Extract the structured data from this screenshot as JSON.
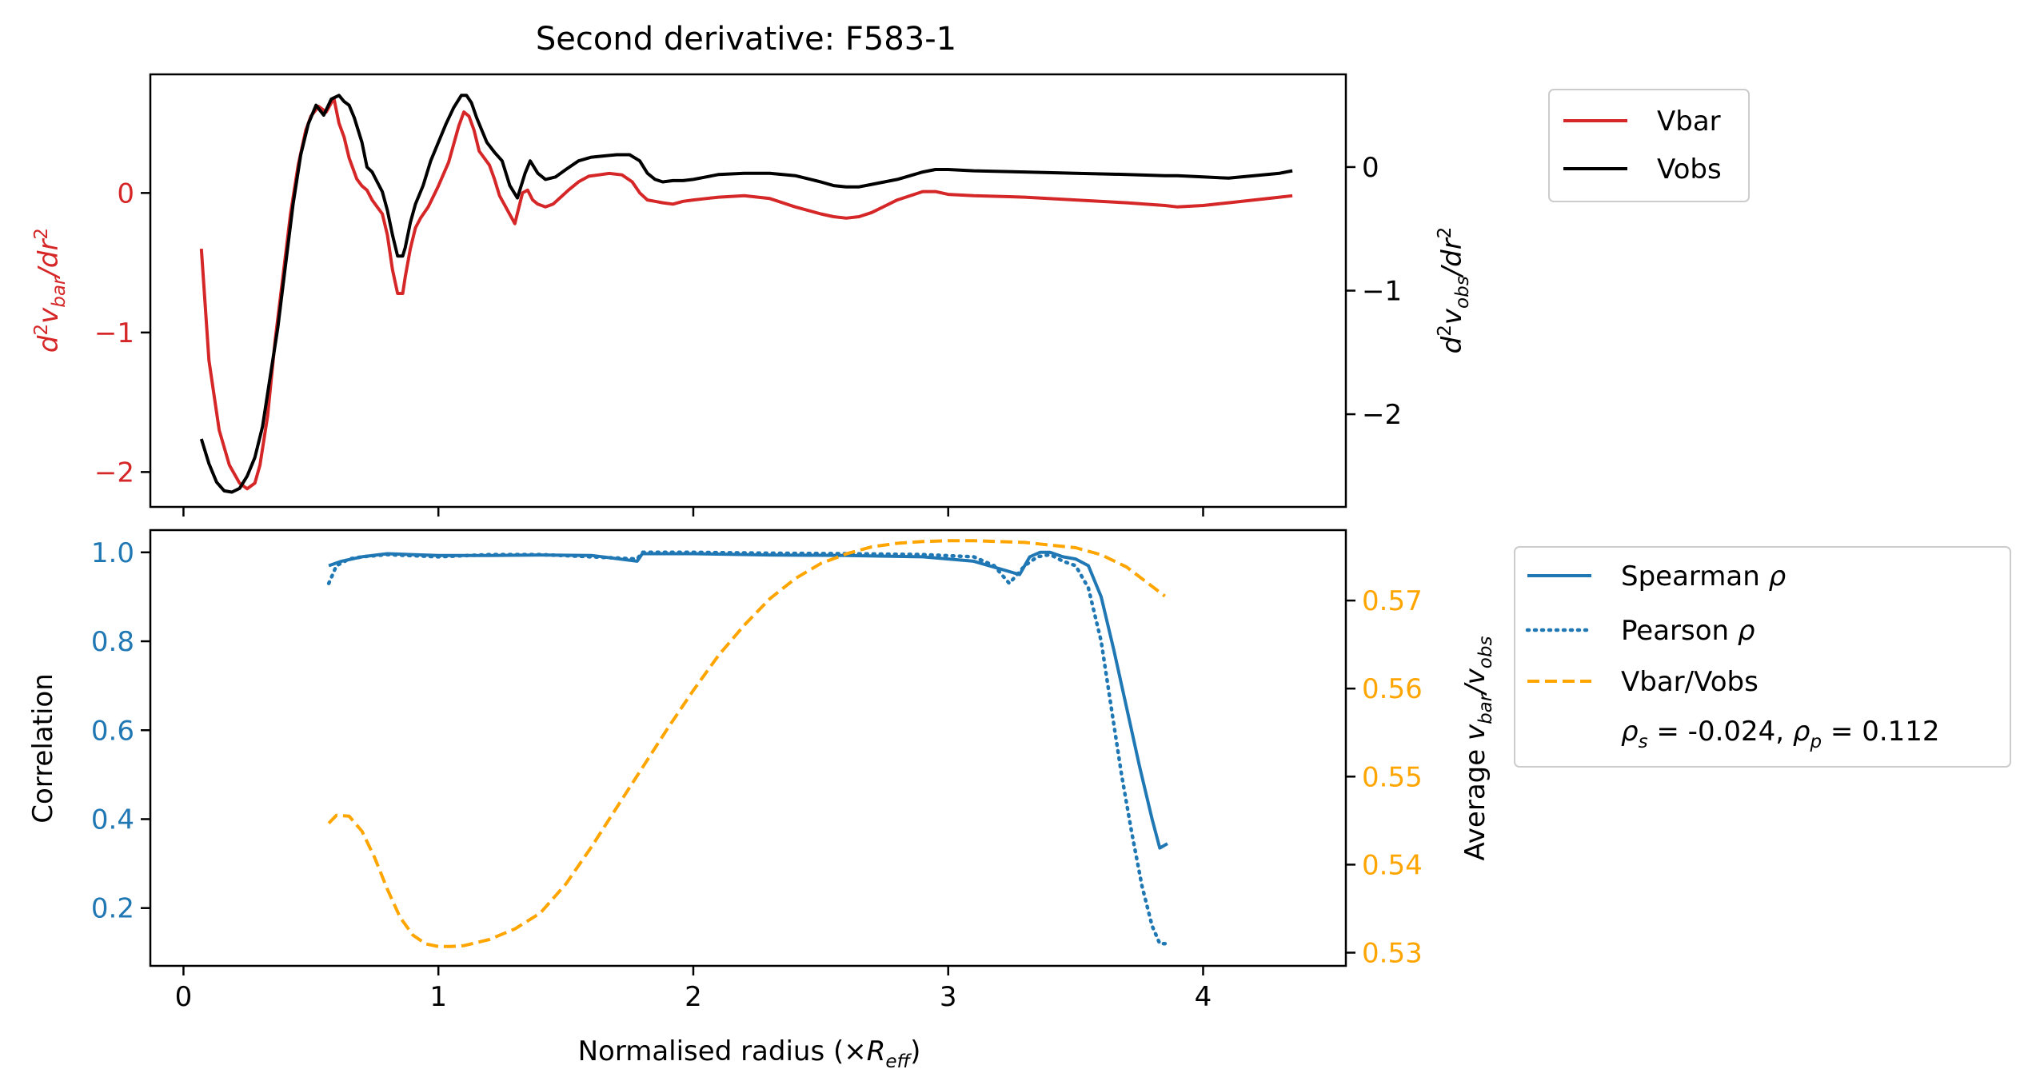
{
  "figure": {
    "title": "Second derivative: F583-1"
  },
  "chart_data": [
    {
      "type": "line",
      "panel": "top",
      "title": "Second derivative: F583-1",
      "xlim": [
        -0.13,
        4.56
      ],
      "x_ticks": [
        0,
        1,
        2,
        3,
        4
      ],
      "ylabel_left": "d²v_bar/dr²",
      "ylabel_right": "d²v_obs/dr²",
      "ylim_left": [
        -2.25,
        0.85
      ],
      "ylim_right": [
        -2.75,
        0.75
      ],
      "yticks_left": [
        {
          "value": 0,
          "label": "0"
        },
        {
          "value": -1,
          "label": "−1"
        },
        {
          "value": -2,
          "label": "−2"
        }
      ],
      "yticks_right": [
        {
          "value": 0,
          "label": "0"
        },
        {
          "value": -1,
          "label": "−1"
        },
        {
          "value": -2,
          "label": "−2"
        }
      ],
      "legend": {
        "placement": "outside-top-right",
        "entries": [
          "Vbar",
          "Vobs"
        ]
      },
      "series": [
        {
          "name": "Vbar",
          "axis": "left",
          "color": "#d62728",
          "style": "solid",
          "x": [
            0.07,
            0.1,
            0.14,
            0.18,
            0.22,
            0.25,
            0.28,
            0.3,
            0.33,
            0.36,
            0.39,
            0.42,
            0.45,
            0.48,
            0.5,
            0.53,
            0.56,
            0.59,
            0.61,
            0.63,
            0.65,
            0.68,
            0.7,
            0.72,
            0.74,
            0.76,
            0.78,
            0.8,
            0.82,
            0.84,
            0.86,
            0.87,
            0.89,
            0.91,
            0.93,
            0.96,
            1.0,
            1.04,
            1.08,
            1.1,
            1.12,
            1.14,
            1.16,
            1.18,
            1.2,
            1.22,
            1.24,
            1.27,
            1.3,
            1.33,
            1.35,
            1.37,
            1.39,
            1.42,
            1.45,
            1.48,
            1.51,
            1.55,
            1.59,
            1.63,
            1.67,
            1.72,
            1.76,
            1.79,
            1.82,
            1.85,
            1.88,
            1.92,
            1.96,
            2.0,
            2.05,
            2.1,
            2.2,
            2.3,
            2.4,
            2.5,
            2.55,
            2.6,
            2.65,
            2.7,
            2.8,
            2.9,
            2.95,
            3.0,
            3.1,
            3.3,
            3.5,
            3.7,
            3.85,
            3.9,
            4.0,
            4.1,
            4.2,
            4.3,
            4.35
          ],
          "values": [
            -0.4,
            -1.2,
            -1.7,
            -1.95,
            -2.08,
            -2.12,
            -2.08,
            -1.95,
            -1.6,
            -1.05,
            -0.6,
            -0.15,
            0.2,
            0.45,
            0.55,
            0.62,
            0.58,
            0.68,
            0.5,
            0.4,
            0.25,
            0.1,
            0.05,
            0.02,
            -0.05,
            -0.1,
            -0.15,
            -0.3,
            -0.55,
            -0.72,
            -0.72,
            -0.6,
            -0.4,
            -0.25,
            -0.18,
            -0.1,
            0.05,
            0.22,
            0.48,
            0.58,
            0.55,
            0.45,
            0.3,
            0.25,
            0.2,
            0.1,
            -0.02,
            -0.12,
            -0.22,
            0.0,
            0.02,
            -0.05,
            -0.08,
            -0.1,
            -0.08,
            -0.03,
            0.02,
            0.08,
            0.12,
            0.13,
            0.14,
            0.13,
            0.08,
            0.0,
            -0.05,
            -0.06,
            -0.07,
            -0.08,
            -0.06,
            -0.05,
            -0.04,
            -0.03,
            -0.02,
            -0.04,
            -0.1,
            -0.15,
            -0.17,
            -0.18,
            -0.17,
            -0.14,
            -0.05,
            0.01,
            0.01,
            -0.01,
            -0.02,
            -0.03,
            -0.05,
            -0.07,
            -0.09,
            -0.1,
            -0.09,
            -0.07,
            -0.05,
            -0.03,
            -0.02
          ]
        },
        {
          "name": "Vobs",
          "axis": "right",
          "color": "#000000",
          "style": "solid",
          "x": [
            0.07,
            0.1,
            0.13,
            0.16,
            0.19,
            0.22,
            0.25,
            0.28,
            0.31,
            0.34,
            0.37,
            0.4,
            0.43,
            0.46,
            0.49,
            0.52,
            0.55,
            0.58,
            0.61,
            0.63,
            0.65,
            0.67,
            0.7,
            0.72,
            0.74,
            0.76,
            0.78,
            0.8,
            0.82,
            0.84,
            0.86,
            0.87,
            0.89,
            0.91,
            0.94,
            0.97,
            1.0,
            1.03,
            1.06,
            1.09,
            1.11,
            1.13,
            1.15,
            1.17,
            1.19,
            1.22,
            1.25,
            1.28,
            1.31,
            1.34,
            1.36,
            1.39,
            1.42,
            1.46,
            1.5,
            1.55,
            1.6,
            1.65,
            1.7,
            1.75,
            1.79,
            1.82,
            1.85,
            1.88,
            1.92,
            1.96,
            2.0,
            2.05,
            2.1,
            2.2,
            2.3,
            2.4,
            2.5,
            2.55,
            2.6,
            2.65,
            2.7,
            2.8,
            2.9,
            2.95,
            3.0,
            3.1,
            3.3,
            3.5,
            3.7,
            3.85,
            3.9,
            4.0,
            4.1,
            4.2,
            4.3,
            4.35
          ],
          "values": [
            -2.2,
            -2.4,
            -2.55,
            -2.62,
            -2.63,
            -2.6,
            -2.5,
            -2.35,
            -2.1,
            -1.7,
            -1.3,
            -0.8,
            -0.3,
            0.1,
            0.35,
            0.5,
            0.42,
            0.55,
            0.58,
            0.53,
            0.5,
            0.4,
            0.2,
            0.0,
            -0.04,
            -0.12,
            -0.2,
            -0.35,
            -0.55,
            -0.72,
            -0.72,
            -0.65,
            -0.45,
            -0.3,
            -0.15,
            0.05,
            0.2,
            0.35,
            0.48,
            0.58,
            0.58,
            0.52,
            0.4,
            0.3,
            0.2,
            0.12,
            0.05,
            -0.15,
            -0.25,
            -0.05,
            0.05,
            -0.05,
            -0.1,
            -0.08,
            -0.02,
            0.05,
            0.08,
            0.09,
            0.1,
            0.1,
            0.05,
            -0.05,
            -0.1,
            -0.12,
            -0.11,
            -0.11,
            -0.1,
            -0.08,
            -0.06,
            -0.05,
            -0.05,
            -0.07,
            -0.12,
            -0.15,
            -0.16,
            -0.16,
            -0.14,
            -0.1,
            -0.04,
            -0.02,
            -0.02,
            -0.03,
            -0.04,
            -0.05,
            -0.06,
            -0.07,
            -0.07,
            -0.08,
            -0.09,
            -0.07,
            -0.05,
            -0.03
          ]
        }
      ]
    },
    {
      "type": "line",
      "panel": "bottom",
      "xlabel": "Normalised radius (×R_eff)",
      "xlim": [
        -0.13,
        4.56
      ],
      "x_ticks": [
        0,
        1,
        2,
        3,
        4
      ],
      "ylabel_left": "Correlation",
      "ylabel_right": "Average v_bar/v_obs",
      "ylim_left": [
        0.07,
        1.05
      ],
      "ylim_right": [
        0.5285,
        0.578
      ],
      "yticks_left": [
        {
          "value": 0.2,
          "label": "0.2"
        },
        {
          "value": 0.4,
          "label": "0.4"
        },
        {
          "value": 0.6,
          "label": "0.6"
        },
        {
          "value": 0.8,
          "label": "0.8"
        },
        {
          "value": 1.0,
          "label": "1.0"
        }
      ],
      "yticks_right": [
        {
          "value": 0.53,
          "label": "0.53"
        },
        {
          "value": 0.54,
          "label": "0.54"
        },
        {
          "value": 0.55,
          "label": "0.55"
        },
        {
          "value": 0.56,
          "label": "0.56"
        },
        {
          "value": 0.57,
          "label": "0.57"
        }
      ],
      "legend": {
        "placement": "outside-bottom-right",
        "entries": [
          "Spearman ρ",
          "Pearson ρ",
          "Vbar/Vobs"
        ],
        "note": "ρ_s = -0.024, ρ_p = 0.112"
      },
      "series": [
        {
          "name": "Spearman ρ",
          "axis": "left",
          "color": "#1f77b4",
          "style": "solid",
          "x": [
            0.57,
            0.62,
            0.7,
            0.8,
            1.0,
            1.2,
            1.4,
            1.6,
            1.78,
            1.8,
            2.0,
            2.3,
            2.6,
            2.9,
            3.1,
            3.28,
            3.32,
            3.36,
            3.4,
            3.45,
            3.5,
            3.55,
            3.6,
            3.65,
            3.7,
            3.75,
            3.8,
            3.83,
            3.86
          ],
          "values": [
            0.97,
            0.98,
            0.99,
            0.997,
            0.993,
            0.993,
            0.994,
            0.993,
            0.98,
            0.997,
            0.997,
            0.994,
            0.993,
            0.99,
            0.98,
            0.95,
            0.99,
            1.0,
            1.0,
            0.99,
            0.985,
            0.97,
            0.9,
            0.78,
            0.65,
            0.52,
            0.4,
            0.335,
            0.345
          ]
        },
        {
          "name": "Pearson ρ",
          "axis": "left",
          "color": "#1f77b4",
          "style": "dotted",
          "x": [
            0.57,
            0.6,
            0.65,
            0.7,
            0.8,
            1.0,
            1.2,
            1.4,
            1.6,
            1.78,
            1.8,
            2.0,
            2.3,
            2.6,
            2.9,
            3.1,
            3.18,
            3.24,
            3.3,
            3.35,
            3.4,
            3.45,
            3.5,
            3.55,
            3.6,
            3.64,
            3.68,
            3.72,
            3.76,
            3.8,
            3.83,
            3.86
          ],
          "values": [
            0.93,
            0.97,
            0.985,
            0.99,
            0.995,
            0.99,
            0.995,
            0.995,
            0.99,
            0.985,
            1.0,
            1.0,
            0.998,
            0.997,
            0.995,
            0.99,
            0.97,
            0.93,
            0.97,
            0.99,
            0.995,
            0.98,
            0.97,
            0.92,
            0.8,
            0.65,
            0.5,
            0.37,
            0.25,
            0.16,
            0.12,
            0.12
          ]
        },
        {
          "name": "Vbar/Vobs",
          "axis": "right",
          "color": "#ffa500",
          "style": "dashed",
          "x": [
            0.57,
            0.6,
            0.65,
            0.7,
            0.75,
            0.8,
            0.85,
            0.9,
            0.95,
            1.0,
            1.05,
            1.1,
            1.2,
            1.3,
            1.4,
            1.5,
            1.6,
            1.7,
            1.8,
            1.9,
            2.0,
            2.1,
            2.2,
            2.3,
            2.4,
            2.5,
            2.6,
            2.7,
            2.8,
            2.9,
            3.0,
            3.1,
            3.2,
            3.3,
            3.4,
            3.5,
            3.6,
            3.7,
            3.85
          ],
          "values": [
            0.5447,
            0.5456,
            0.5455,
            0.5438,
            0.5408,
            0.5372,
            0.534,
            0.532,
            0.531,
            0.5307,
            0.5307,
            0.5308,
            0.5315,
            0.5327,
            0.5345,
            0.5378,
            0.542,
            0.5465,
            0.551,
            0.5555,
            0.5598,
            0.5638,
            0.5672,
            0.5702,
            0.5725,
            0.5742,
            0.5753,
            0.5761,
            0.5765,
            0.5767,
            0.5768,
            0.5768,
            0.5767,
            0.5766,
            0.5763,
            0.576,
            0.5752,
            0.5738,
            0.5705
          ]
        }
      ]
    }
  ]
}
